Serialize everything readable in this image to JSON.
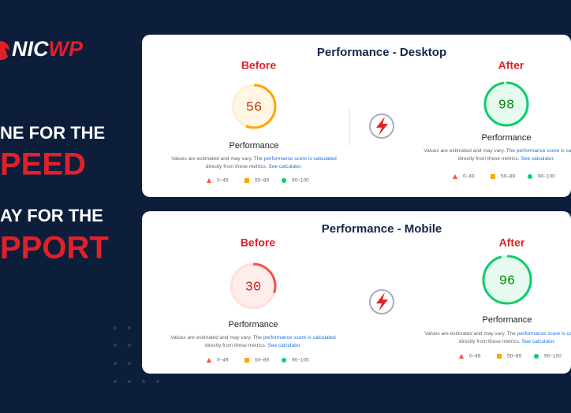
{
  "logo": {
    "part1": "NIC",
    "part2": "WP"
  },
  "headline": [
    "NE FOR THE",
    "PEED",
    "AY FOR THE",
    "PPORT"
  ],
  "note": {
    "text1": "Values are estimated and may vary. The",
    "link1": "performance score is calculated",
    "text2": "directly from these metrics.",
    "link2": "See calculator."
  },
  "legend": [
    "0–49",
    "50–89",
    "90–100"
  ],
  "cards": [
    {
      "title": "Performance - Desktop",
      "panels": [
        {
          "heading": "Before",
          "score": 56,
          "label": "Performance",
          "color": "#ffa400"
        },
        {
          "heading": "After",
          "score": 98,
          "label": "Performance",
          "color": "#0cce6b"
        }
      ]
    },
    {
      "title": "Performance - Mobile",
      "panels": [
        {
          "heading": "Before",
          "score": 30,
          "label": "Performance",
          "color": "#ff4e42"
        },
        {
          "heading": "After",
          "score": 96,
          "label": "Performance",
          "color": "#0cce6b"
        }
      ]
    }
  ]
}
